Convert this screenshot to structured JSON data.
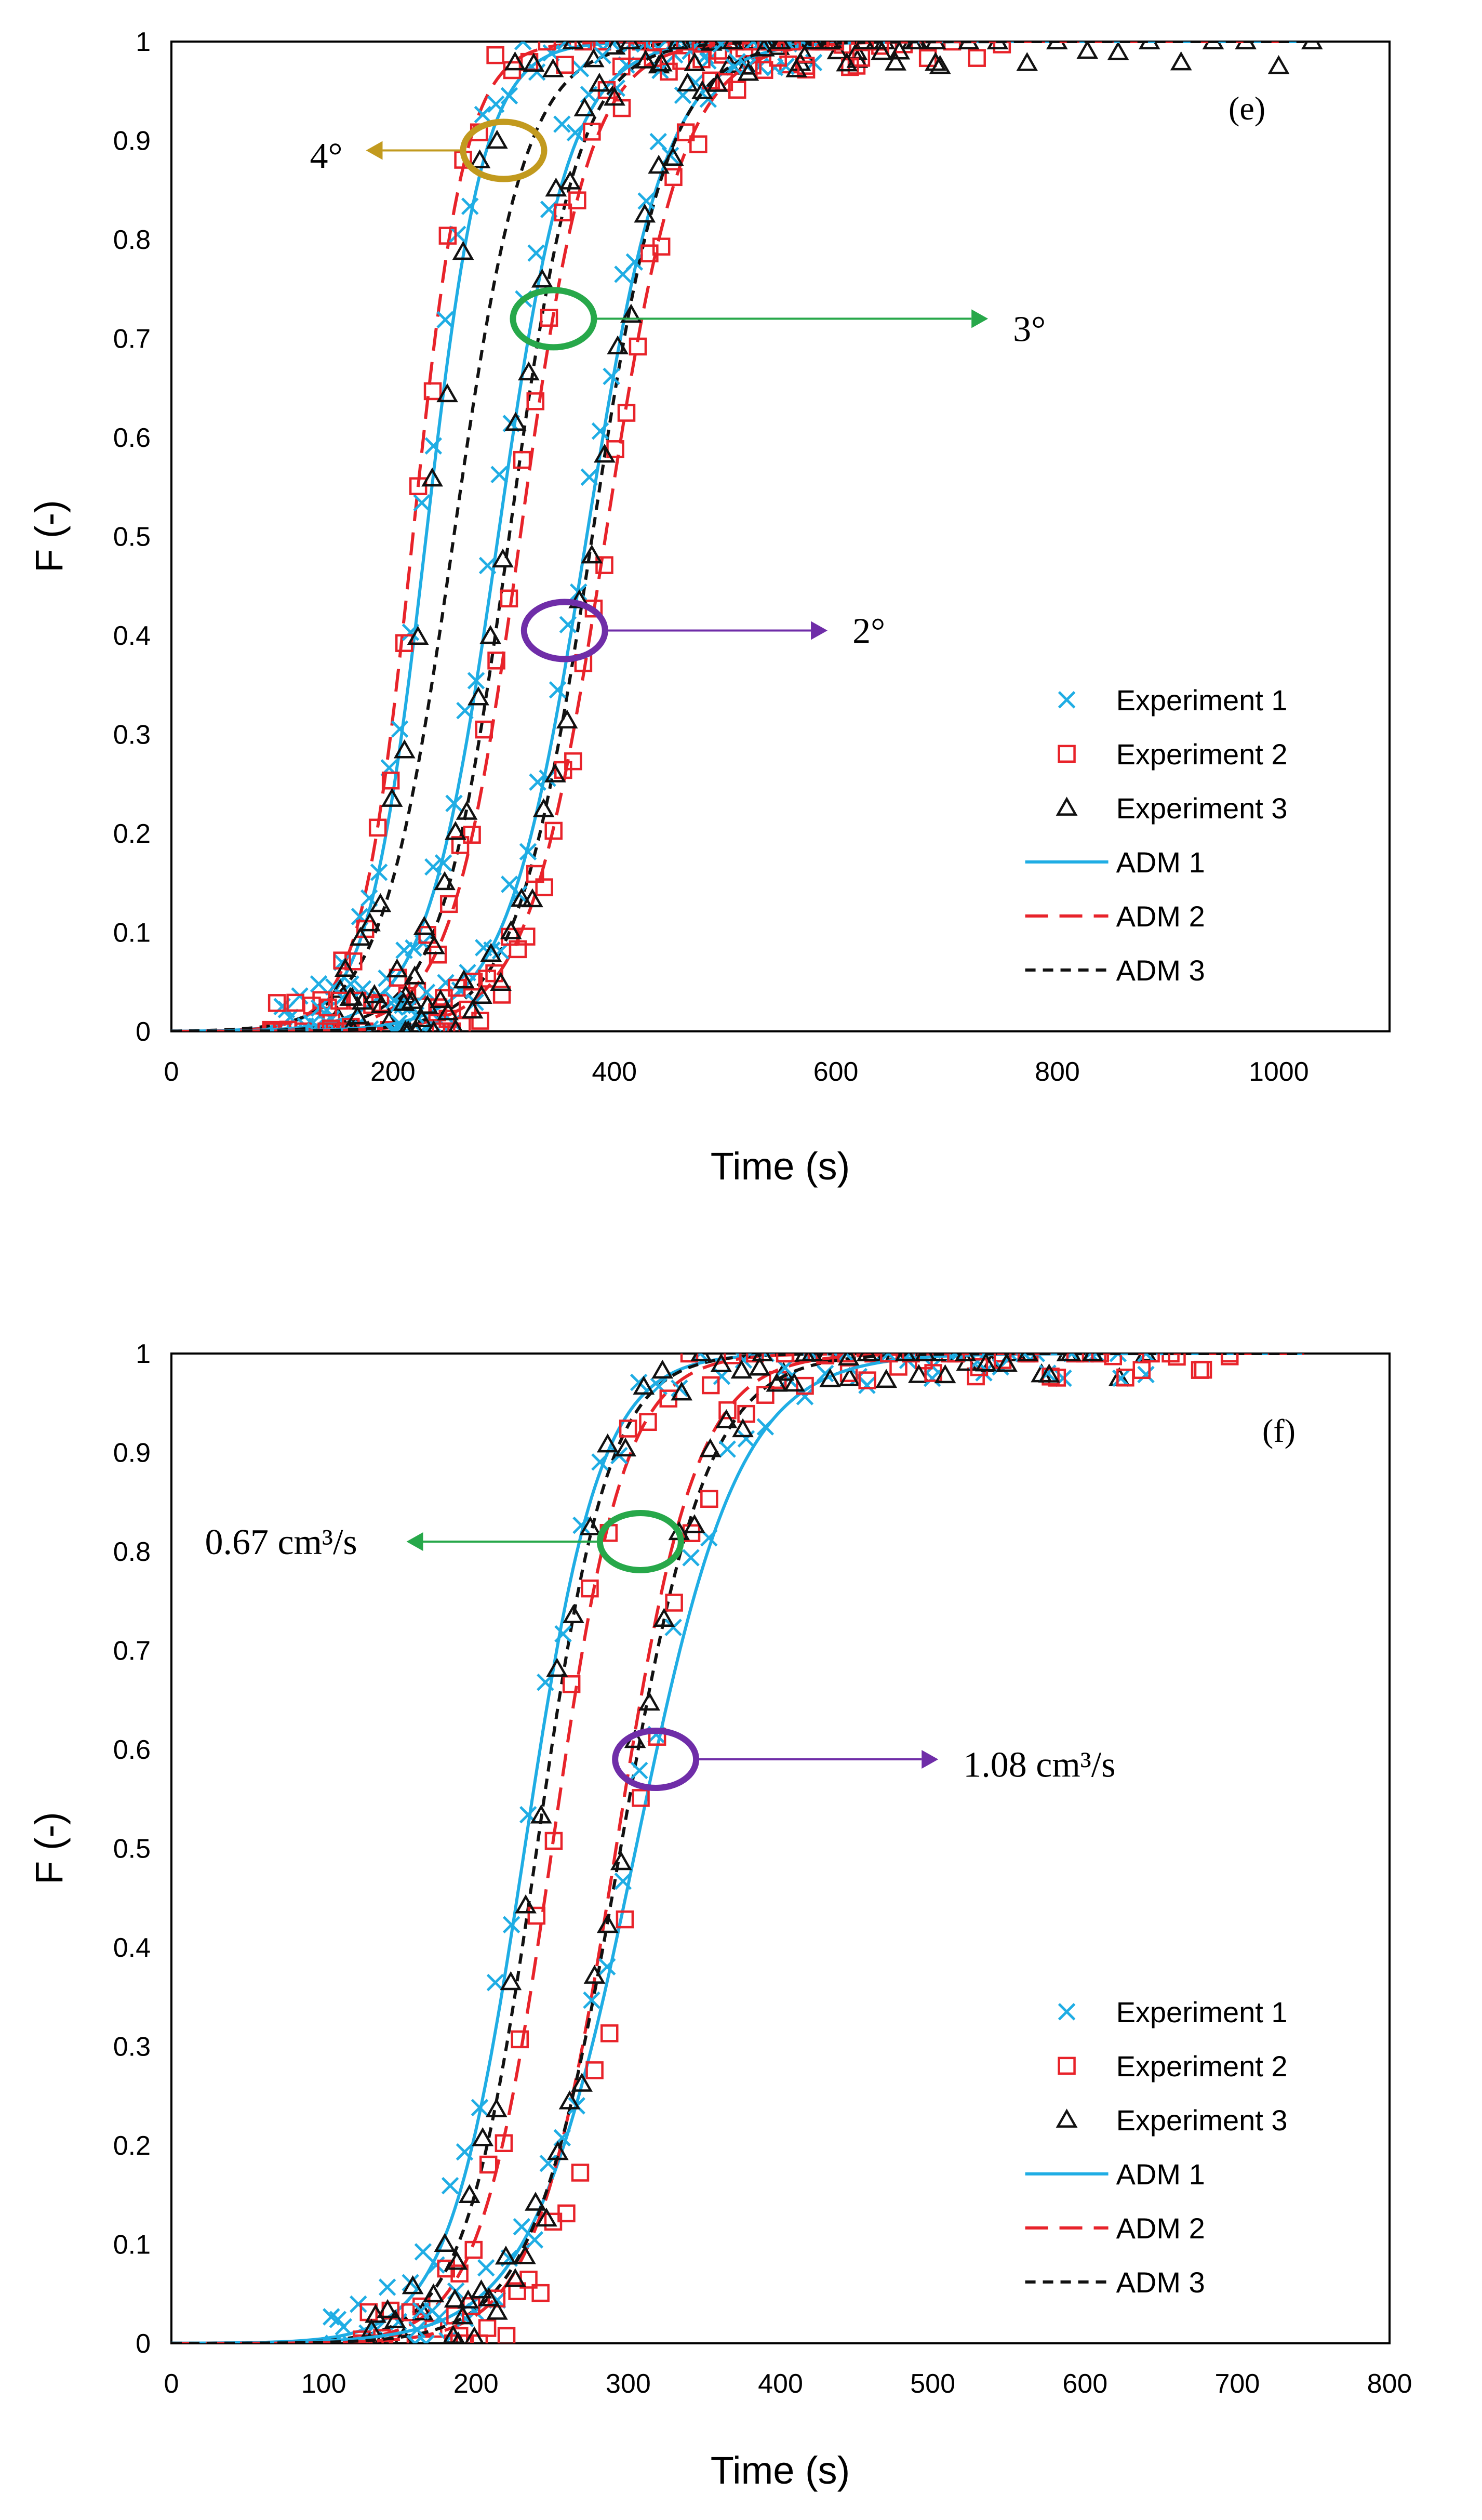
{
  "colors": {
    "exp1": "#1FADE4",
    "exp2": "#E8232A",
    "exp3": "#111111",
    "adm1": "#1FADE4",
    "adm2": "#E8232A",
    "adm3": "#111111",
    "gold": "#C29A1E",
    "green": "#27A84A",
    "purple": "#6F2DA8"
  },
  "chart_data": [
    {
      "type": "scatter",
      "panel_label": "(e)",
      "xlabel": "Time (s)",
      "ylabel": "F (-)",
      "xlim": [
        0,
        1100
      ],
      "ylim": [
        0,
        1
      ],
      "x_ticks": [
        0,
        200,
        400,
        600,
        800,
        1000
      ],
      "x_tick_labels": [
        "0",
        "200",
        "400",
        "600",
        "800",
        "1000"
      ],
      "y_ticks": [
        0,
        0.1,
        0.2,
        0.3,
        0.4,
        0.5,
        0.6,
        0.7,
        0.8,
        0.9,
        1
      ],
      "y_tick_labels": [
        "0",
        "0.1",
        "0.2",
        "0.3",
        "0.4",
        "0.5",
        "0.6",
        "0.7",
        "0.8",
        "0.9",
        "1"
      ],
      "legend": [
        "Experiment 1",
        "Experiment 2",
        "Experiment 3",
        "ADM 1",
        "ADM 2",
        "ADM 3"
      ],
      "legend_position": "bottom-right",
      "annotations": [
        {
          "text": "4°",
          "color": "gold",
          "at": [
            300,
            0.89
          ],
          "label_at": [
            125,
            0.885
          ],
          "direction": "left"
        },
        {
          "text": "3°",
          "color": "green",
          "at": [
            345,
            0.72
          ],
          "label_at": [
            760,
            0.71
          ],
          "direction": "right"
        },
        {
          "text": "2°",
          "color": "purple",
          "at": [
            355,
            0.405
          ],
          "label_at": [
            615,
            0.405
          ],
          "direction": "right"
        }
      ],
      "groups": [
        {
          "name": "4°",
          "adm": [
            {
              "name": "ADM 1",
              "mid": 230,
              "sig": 42
            },
            {
              "name": "ADM 2",
              "mid": 218,
              "sig": 38
            },
            {
              "name": "ADM 3",
              "mid": 255,
              "sig": 52
            }
          ],
          "exp": [
            {
              "name": "Experiment 1",
              "mid": 225,
              "sig": 40,
              "start": 100,
              "end": 580
            },
            {
              "name": "Experiment 2",
              "mid": 220,
              "sig": 36,
              "start": 90,
              "end": 750
            },
            {
              "name": "Experiment 3",
              "mid": 232,
              "sig": 40,
              "start": 150,
              "end": 1030
            }
          ]
        },
        {
          "name": "3°",
          "adm": [
            {
              "name": "ADM 1",
              "mid": 295,
              "sig": 52
            },
            {
              "name": "ADM 2",
              "mid": 315,
              "sig": 50
            },
            {
              "name": "ADM 3",
              "mid": 305,
              "sig": 50
            }
          ],
          "exp": [
            {
              "name": "Experiment 1",
              "mid": 290,
              "sig": 48,
              "start": 130,
              "end": 570
            },
            {
              "name": "Experiment 2",
              "mid": 310,
              "sig": 50,
              "start": 140,
              "end": 640
            },
            {
              "name": "Experiment 3",
              "mid": 300,
              "sig": 48,
              "start": 160,
              "end": 690
            }
          ]
        },
        {
          "name": "2°",
          "adm": [
            {
              "name": "ADM 1",
              "mid": 375,
              "sig": 58
            },
            {
              "name": "ADM 2",
              "mid": 392,
              "sig": 56
            },
            {
              "name": "ADM 3",
              "mid": 380,
              "sig": 55
            }
          ],
          "exp": [
            {
              "name": "Experiment 1",
              "mid": 372,
              "sig": 55,
              "start": 200,
              "end": 570
            },
            {
              "name": "Experiment 2",
              "mid": 392,
              "sig": 55,
              "start": 240,
              "end": 640
            },
            {
              "name": "Experiment 3",
              "mid": 380,
              "sig": 52,
              "start": 210,
              "end": 690
            }
          ]
        }
      ]
    },
    {
      "type": "scatter",
      "panel_label": "(f)",
      "xlabel": "Time (s)",
      "ylabel": "F (-)",
      "xlim": [
        0,
        800
      ],
      "ylim": [
        0,
        1
      ],
      "x_ticks": [
        0,
        100,
        200,
        300,
        400,
        500,
        600,
        700,
        800
      ],
      "x_tick_labels": [
        "0",
        "100",
        "200",
        "300",
        "400",
        "500",
        "600",
        "700",
        "800"
      ],
      "y_ticks": [
        0,
        0.1,
        0.2,
        0.3,
        0.4,
        0.5,
        0.6,
        0.7,
        0.8,
        0.9,
        1
      ],
      "y_tick_labels": [
        "0",
        "0.1",
        "0.2",
        "0.3",
        "0.4",
        "0.5",
        "0.6",
        "0.7",
        "0.8",
        "0.9",
        "1"
      ],
      "legend": [
        "Experiment 1",
        "Experiment 2",
        "Experiment 3",
        "ADM 1",
        "ADM 2",
        "ADM 3"
      ],
      "legend_position": "bottom-right",
      "annotations": [
        {
          "text": "0.67 cm³/s",
          "color": "green",
          "at": [
            308,
            0.81
          ],
          "label_at": [
            22,
            0.81
          ],
          "direction": "left"
        },
        {
          "text": "1.08 cm³/s",
          "color": "purple",
          "at": [
            318,
            0.59
          ],
          "label_at": [
            520,
            0.585
          ],
          "direction": "right"
        }
      ],
      "groups": [
        {
          "name": "0.67 cm³/s",
          "adm": [
            {
              "name": "ADM 1",
              "mid": 232,
              "sig": 40
            },
            {
              "name": "ADM 2",
              "mid": 250,
              "sig": 38
            },
            {
              "name": "ADM 3",
              "mid": 240,
              "sig": 38
            }
          ],
          "exp": [
            {
              "name": "Experiment 1",
              "mid": 230,
              "sig": 42,
              "start": 105,
              "end": 640
            },
            {
              "name": "Experiment 2",
              "mid": 248,
              "sig": 38,
              "start": 125,
              "end": 695
            },
            {
              "name": "Experiment 3",
              "mid": 238,
              "sig": 38,
              "start": 130,
              "end": 640
            }
          ]
        },
        {
          "name": "1.08 cm³/s",
          "adm": [
            {
              "name": "ADM 1",
              "mid": 305,
              "sig": 55
            },
            {
              "name": "ADM 2",
              "mid": 292,
              "sig": 42
            },
            {
              "name": "ADM 3",
              "mid": 295,
              "sig": 46
            }
          ],
          "exp": [
            {
              "name": "Experiment 1",
              "mid": 300,
              "sig": 52,
              "start": 160,
              "end": 640
            },
            {
              "name": "Experiment 2",
              "mid": 305,
              "sig": 40,
              "start": 185,
              "end": 695
            },
            {
              "name": "Experiment 3",
              "mid": 295,
              "sig": 45,
              "start": 185,
              "end": 605
            }
          ]
        }
      ]
    }
  ]
}
